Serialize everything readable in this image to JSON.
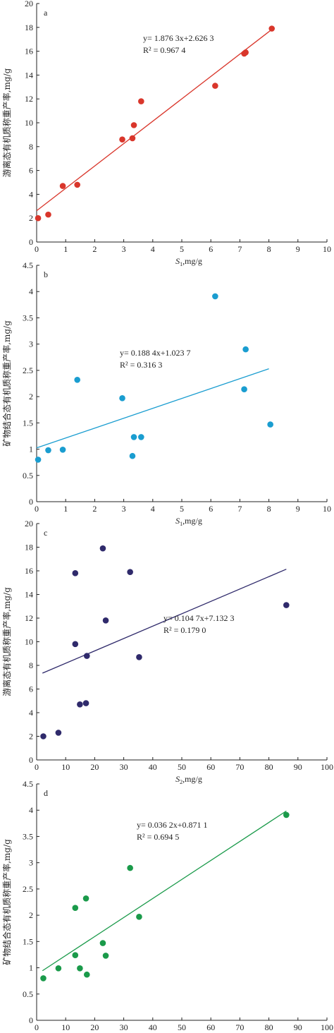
{
  "chart_data": [
    {
      "panel": "a",
      "type": "scatter",
      "color": "#d9362b",
      "xlabel": "S1,mg/g",
      "ylabel": "游离态有机质称重产率,mg/g",
      "xlim": [
        0,
        10
      ],
      "ylim": [
        0,
        20
      ],
      "xticks": [
        0,
        1,
        2,
        3,
        4,
        5,
        6,
        7,
        8,
        9,
        10
      ],
      "yticks": [
        0,
        2,
        4,
        6,
        8,
        10,
        12,
        14,
        16,
        18,
        20
      ],
      "equation": "y= 1.876 3x+2.626 3",
      "r2": "R² = 0.967 4",
      "fit": {
        "slope": 1.8763,
        "intercept": 2.6263,
        "x_range": [
          0,
          8.1
        ]
      },
      "points": [
        {
          "x": 0.05,
          "y": 2.0
        },
        {
          "x": 0.4,
          "y": 2.3
        },
        {
          "x": 0.9,
          "y": 4.7
        },
        {
          "x": 1.4,
          "y": 4.8
        },
        {
          "x": 2.95,
          "y": 8.6
        },
        {
          "x": 3.3,
          "y": 8.7
        },
        {
          "x": 3.35,
          "y": 9.8
        },
        {
          "x": 3.6,
          "y": 11.8
        },
        {
          "x": 6.15,
          "y": 13.1
        },
        {
          "x": 7.15,
          "y": 15.8
        },
        {
          "x": 7.2,
          "y": 15.9
        },
        {
          "x": 8.1,
          "y": 17.9
        }
      ]
    },
    {
      "panel": "b",
      "type": "scatter",
      "color": "#1a9dd0",
      "xlabel": "S1,mg/g",
      "ylabel": "矿物结合态有机质称重产率,mg/g",
      "xlim": [
        0,
        10
      ],
      "ylim": [
        0,
        4.5
      ],
      "xticks": [
        0,
        1,
        2,
        3,
        4,
        5,
        6,
        7,
        8,
        9,
        10
      ],
      "yticks": [
        0,
        0.5,
        1.0,
        1.5,
        2.0,
        2.5,
        3.0,
        3.5,
        4.0,
        4.5
      ],
      "equation": "y= 0.188 4x+1.023 7",
      "r2": "R² = 0.316 3",
      "fit": {
        "slope": 0.1884,
        "intercept": 1.0237,
        "x_range": [
          0,
          8.0
        ]
      },
      "points": [
        {
          "x": 0.05,
          "y": 0.8
        },
        {
          "x": 0.4,
          "y": 0.98
        },
        {
          "x": 0.9,
          "y": 0.99
        },
        {
          "x": 1.4,
          "y": 2.32
        },
        {
          "x": 2.95,
          "y": 1.97
        },
        {
          "x": 3.3,
          "y": 0.87
        },
        {
          "x": 3.35,
          "y": 1.23
        },
        {
          "x": 3.6,
          "y": 1.23
        },
        {
          "x": 6.15,
          "y": 3.91
        },
        {
          "x": 7.15,
          "y": 2.14
        },
        {
          "x": 7.2,
          "y": 2.9
        },
        {
          "x": 8.05,
          "y": 1.47
        }
      ]
    },
    {
      "panel": "c",
      "type": "scatter",
      "color": "#2f2a6b",
      "xlabel": "S2,mg/g",
      "ylabel": "游离态有机质称重产率,mg/g",
      "xlim": [
        0,
        100
      ],
      "ylim": [
        0,
        20
      ],
      "xticks": [
        0,
        10,
        20,
        30,
        40,
        50,
        60,
        70,
        80,
        90,
        100
      ],
      "yticks": [
        0,
        2,
        4,
        6,
        8,
        10,
        12,
        14,
        16,
        18,
        20
      ],
      "equation": "y= 0.104 7x+7.132 3",
      "r2": "R² = 0.179 0",
      "fit": {
        "slope": 0.1047,
        "intercept": 7.1323,
        "x_range": [
          2,
          86
        ]
      },
      "points": [
        {
          "x": 2.3,
          "y": 2.0
        },
        {
          "x": 7.5,
          "y": 2.3
        },
        {
          "x": 13.3,
          "y": 9.8
        },
        {
          "x": 13.3,
          "y": 15.8
        },
        {
          "x": 14.9,
          "y": 4.7
        },
        {
          "x": 17.0,
          "y": 4.8
        },
        {
          "x": 17.3,
          "y": 8.8
        },
        {
          "x": 22.8,
          "y": 17.9
        },
        {
          "x": 23.8,
          "y": 11.8
        },
        {
          "x": 32.2,
          "y": 15.9
        },
        {
          "x": 35.3,
          "y": 8.7
        },
        {
          "x": 86.0,
          "y": 13.1
        }
      ]
    },
    {
      "panel": "d",
      "type": "scatter",
      "color": "#1a9a4a",
      "xlabel": "S2,mg/g",
      "ylabel": "矿物结合态有机质称重产率,mg/g",
      "xlim": [
        0,
        100
      ],
      "ylim": [
        0,
        4.5
      ],
      "xticks": [
        0,
        10,
        20,
        30,
        40,
        50,
        60,
        70,
        80,
        90,
        100
      ],
      "yticks": [
        0,
        0.5,
        1.0,
        1.5,
        2.0,
        2.5,
        3.0,
        3.5,
        4.0,
        4.5
      ],
      "equation": "y= 0.036 2x+0.871 1",
      "r2": "R² = 0.694 5",
      "fit": {
        "slope": 0.0362,
        "intercept": 0.8711,
        "x_range": [
          2,
          86
        ]
      },
      "points": [
        {
          "x": 2.3,
          "y": 0.8
        },
        {
          "x": 7.5,
          "y": 0.99
        },
        {
          "x": 13.3,
          "y": 1.24
        },
        {
          "x": 13.3,
          "y": 2.14
        },
        {
          "x": 14.9,
          "y": 0.99
        },
        {
          "x": 17.0,
          "y": 2.32
        },
        {
          "x": 17.3,
          "y": 0.87
        },
        {
          "x": 22.8,
          "y": 1.47
        },
        {
          "x": 23.8,
          "y": 1.23
        },
        {
          "x": 32.2,
          "y": 2.9
        },
        {
          "x": 35.3,
          "y": 1.97
        },
        {
          "x": 86.0,
          "y": 3.91
        }
      ]
    }
  ]
}
